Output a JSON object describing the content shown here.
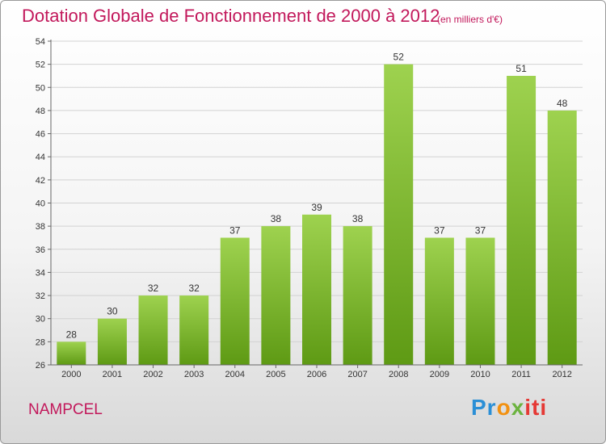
{
  "title": "Dotation Globale de Fonctionnement de 2000 à 2012",
  "subtitle": "(en milliers d'€)",
  "commune": "NAMPCEL",
  "logo": {
    "letters": [
      "Pr",
      "o",
      "x",
      "iti"
    ],
    "colors": [
      "#2b8fd6",
      "#f29111",
      "#6cb33f",
      "#e53935"
    ]
  },
  "colors": {
    "bar_top": "#9ed24f",
    "bar_bottom": "#5e9a14",
    "accent": "#c2185b"
  },
  "chart_data": {
    "type": "bar",
    "title": "Dotation Globale de Fonctionnement de 2000 à 2012",
    "subtitle": "(en milliers d'€)",
    "categories": [
      "2000",
      "2001",
      "2002",
      "2003",
      "2004",
      "2005",
      "2006",
      "2007",
      "2008",
      "2009",
      "2010",
      "2011",
      "2012"
    ],
    "values": [
      28,
      30,
      32,
      32,
      37,
      38,
      39,
      38,
      52,
      37,
      37,
      51,
      48
    ],
    "ylim": [
      26,
      54
    ],
    "yticks": [
      26,
      28,
      30,
      32,
      34,
      36,
      38,
      40,
      42,
      44,
      46,
      48,
      50,
      52,
      54
    ],
    "grid": true,
    "legend": "none"
  }
}
